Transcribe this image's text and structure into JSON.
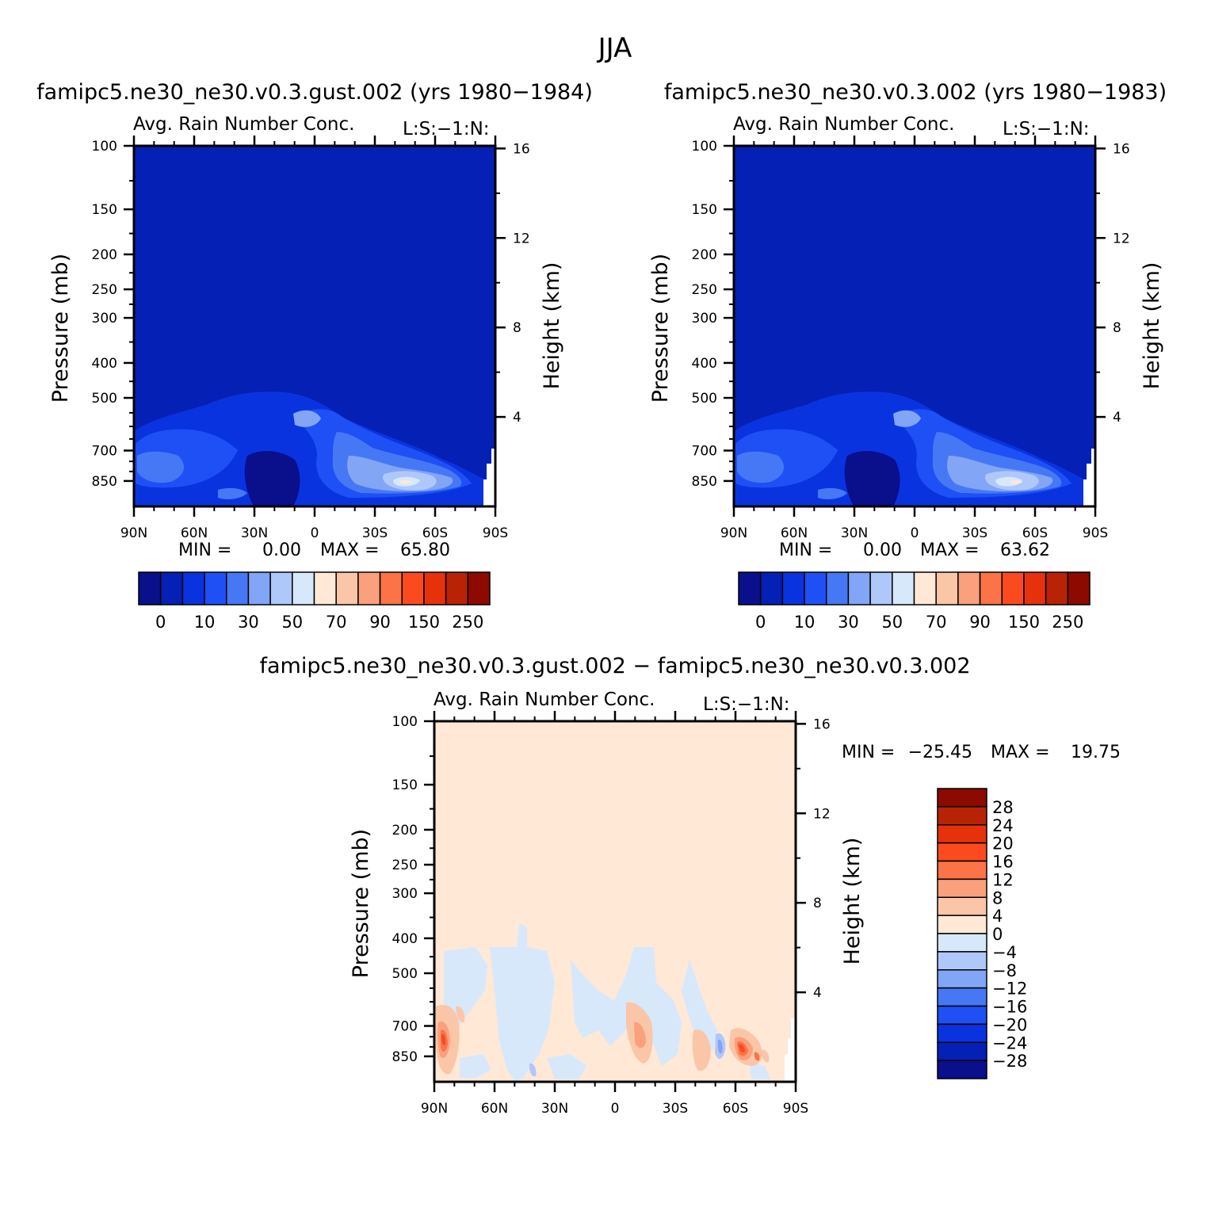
{
  "figure_title": "JJA",
  "colors": {
    "full_field": [
      "#0a0f8c",
      "#0520b4",
      "#0a33e0",
      "#1e50f5",
      "#4678f5",
      "#82a5f5",
      "#afc8fa",
      "#d7e8fa",
      "#ffe8d6",
      "#fbc6a8",
      "#faa07d",
      "#fb7346",
      "#fb4b1e",
      "#e6320a",
      "#b92305",
      "#8c0a00"
    ],
    "difference": [
      "#0a0f8c",
      "#0520b4",
      "#0a33e0",
      "#1e50f5",
      "#4678f5",
      "#82a5f5",
      "#afc8fa",
      "#d7e8fa",
      "#ffe8d6",
      "#fbc6a8",
      "#faa07d",
      "#fb7346",
      "#fb4b1e",
      "#e6320a",
      "#b92305",
      "#8c0a00"
    ]
  },
  "chart_data": [
    {
      "type": "heatmap",
      "panel_title": "famipc5.ne30_ne30.v0.3.gust.002 (yrs 1980−1984)",
      "variable_label": "Avg. Rain Number Conc.",
      "variable_code": "L:S:−1:N:",
      "ylabel": "Pressure (mb)",
      "y2label": "Height (km)",
      "x_ticks": [
        "90N",
        "60N",
        "30N",
        "0",
        "30S",
        "60S",
        "90S"
      ],
      "y_ticks": [
        "100",
        "150",
        "200",
        "250",
        "300",
        "400",
        "500",
        "700",
        "850"
      ],
      "y2_ticks": [
        "16",
        "12",
        "8",
        "4"
      ],
      "min_label": "MIN =",
      "min_value": "0.00",
      "max_label": "MAX =",
      "max_value": "65.80",
      "colorbar_labels": [
        "0",
        "10",
        "30",
        "50",
        "70",
        "90",
        "150",
        "250"
      ]
    },
    {
      "type": "heatmap",
      "panel_title": "famipc5.ne30_ne30.v0.3.002 (yrs 1980−1983)",
      "variable_label": "Avg. Rain Number Conc.",
      "variable_code": "L:S:−1:N:",
      "ylabel": "Pressure (mb)",
      "y2label": "Height (km)",
      "x_ticks": [
        "90N",
        "60N",
        "30N",
        "0",
        "30S",
        "60S",
        "90S"
      ],
      "y_ticks": [
        "100",
        "150",
        "200",
        "250",
        "300",
        "400",
        "500",
        "700",
        "850"
      ],
      "y2_ticks": [
        "16",
        "12",
        "8",
        "4"
      ],
      "min_label": "MIN =",
      "min_value": "0.00",
      "max_label": "MAX =",
      "max_value": "63.62",
      "colorbar_labels": [
        "0",
        "10",
        "30",
        "50",
        "70",
        "90",
        "150",
        "250"
      ]
    },
    {
      "type": "heatmap",
      "panel_title": "famipc5.ne30_ne30.v0.3.gust.002 − famipc5.ne30_ne30.v0.3.002",
      "variable_label": "Avg. Rain Number Conc.",
      "variable_code": "L:S:−1:N:",
      "ylabel": "Pressure (mb)",
      "y2label": "Height (km)",
      "x_ticks": [
        "90N",
        "60N",
        "30N",
        "0",
        "30S",
        "60S",
        "90S"
      ],
      "y_ticks": [
        "100",
        "150",
        "200",
        "250",
        "300",
        "400",
        "500",
        "700",
        "850"
      ],
      "y2_ticks": [
        "16",
        "12",
        "8",
        "4"
      ],
      "min_label": "MIN =",
      "min_value": "−25.45",
      "max_label": "MAX =",
      "max_value": "19.75",
      "colorbar_labels": [
        "28",
        "24",
        "20",
        "16",
        "12",
        "8",
        "4",
        "0",
        "−4",
        "−8",
        "−12",
        "−16",
        "−20",
        "−24",
        "−28"
      ]
    }
  ]
}
